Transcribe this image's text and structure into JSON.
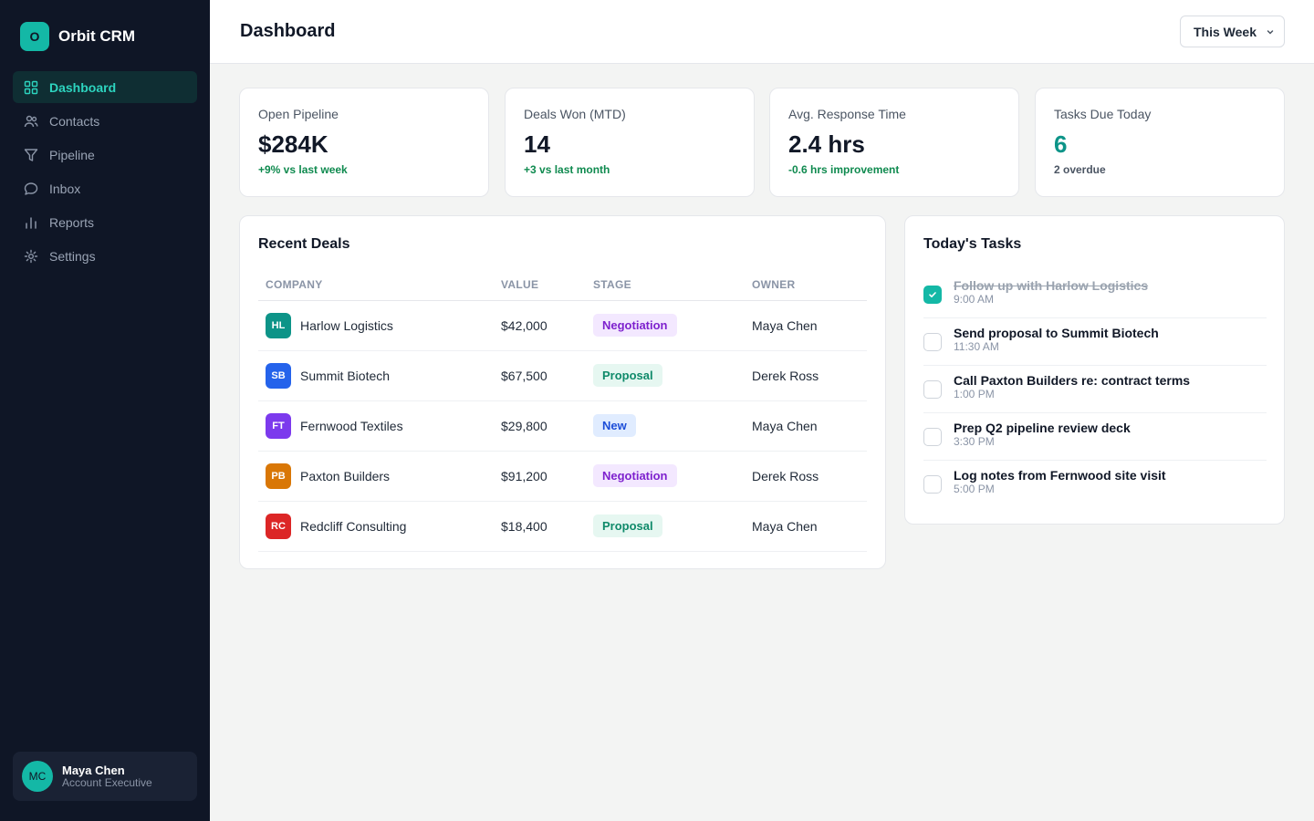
{
  "app": {
    "logo_letter": "O",
    "name": "Orbit CRM"
  },
  "sidebar": {
    "items": [
      {
        "label": "Dashboard",
        "icon": "grid-icon",
        "active": true
      },
      {
        "label": "Contacts",
        "icon": "users-icon",
        "active": false
      },
      {
        "label": "Pipeline",
        "icon": "funnel-icon",
        "active": false
      },
      {
        "label": "Inbox",
        "icon": "chat-bubble-icon",
        "active": false
      },
      {
        "label": "Reports",
        "icon": "bar-chart-icon",
        "active": false
      },
      {
        "label": "Settings",
        "icon": "gear-icon",
        "active": false
      }
    ]
  },
  "user": {
    "initials": "MC",
    "name": "Maya Chen",
    "role": "Account Executive"
  },
  "header": {
    "title": "Dashboard",
    "period_label": "This Week"
  },
  "kpis": [
    {
      "label": "Open Pipeline",
      "value": "$284K",
      "delta": "+9% vs last week"
    },
    {
      "label": "Deals Won (MTD)",
      "value": "14",
      "delta": "+3 vs last month"
    },
    {
      "label": "Avg. Response Time",
      "value": "2.4 hrs",
      "delta": "-0.6 hrs improvement"
    },
    {
      "label": "Tasks Due Today",
      "value": "6",
      "delta": "2 overdue"
    }
  ],
  "deals": {
    "title": "Recent Deals",
    "columns": [
      "COMPANY",
      "VALUE",
      "STAGE",
      "OWNER"
    ],
    "rows": [
      {
        "initials": "HL",
        "color": "#0d9488",
        "company": "Harlow Logistics",
        "value": "$42,000",
        "stage": "Negotiation",
        "owner": "Maya Chen"
      },
      {
        "initials": "SB",
        "color": "#2563eb",
        "company": "Summit Biotech",
        "value": "$67,500",
        "stage": "Proposal",
        "owner": "Derek Ross"
      },
      {
        "initials": "FT",
        "color": "#7c3aed",
        "company": "Fernwood Textiles",
        "value": "$29,800",
        "stage": "New",
        "owner": "Maya Chen"
      },
      {
        "initials": "PB",
        "color": "#d97706",
        "company": "Paxton Builders",
        "value": "$91,200",
        "stage": "Negotiation",
        "owner": "Derek Ross"
      },
      {
        "initials": "RC",
        "color": "#dc2626",
        "company": "Redcliff Consulting",
        "value": "$18,400",
        "stage": "Proposal",
        "owner": "Maya Chen"
      }
    ]
  },
  "tasks": {
    "title": "Today's Tasks",
    "items": [
      {
        "title": "Follow up with Harlow Logistics",
        "time": "9:00 AM",
        "done": true
      },
      {
        "title": "Send proposal to Summit Biotech",
        "time": "11:30 AM",
        "done": false
      },
      {
        "title": "Call Paxton Builders re: contract terms",
        "time": "1:00 PM",
        "done": false
      },
      {
        "title": "Prep Q2 pipeline review deck",
        "time": "3:30 PM",
        "done": false
      },
      {
        "title": "Log notes from Fernwood site visit",
        "time": "5:00 PM",
        "done": false
      }
    ]
  },
  "colors": {
    "accent": "#14b8a6",
    "sidebar_bg": "#0f1626",
    "positive": "#0f8a4f"
  }
}
